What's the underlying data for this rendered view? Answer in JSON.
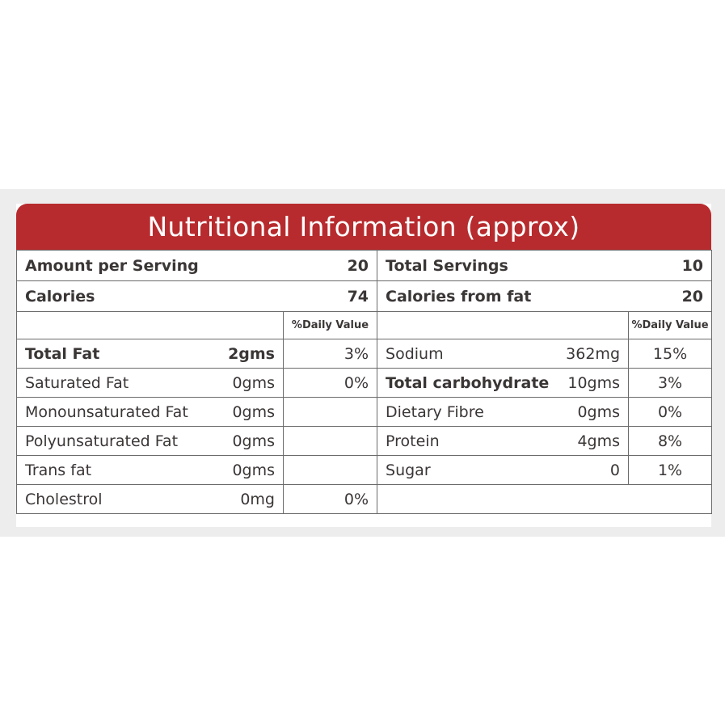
{
  "title": "Nutritional Information (approx)",
  "summary": {
    "amount_per_serving_label": "Amount per Serving",
    "amount_per_serving_value": "20",
    "calories_label": "Calories",
    "calories_value": "74",
    "total_servings_label": "Total Servings",
    "total_servings_value": "10",
    "calories_from_fat_label": "Calories from fat",
    "calories_from_fat_value": "20"
  },
  "daily_value_header_left": "%Daily Value",
  "daily_value_header_right": "%Daily Value",
  "left_rows": [
    {
      "name": "Total Fat",
      "amount": "2gms",
      "dv": "3%",
      "bold": true
    },
    {
      "name": "Saturated Fat",
      "amount": "0gms",
      "dv": "0%"
    },
    {
      "name": "Monounsaturated Fat",
      "amount": "0gms",
      "dv": ""
    },
    {
      "name": "Polyunsaturated Fat",
      "amount": "0gms",
      "dv": ""
    },
    {
      "name": "Trans fat",
      "amount": "0gms",
      "dv": ""
    },
    {
      "name": "Cholestrol",
      "amount": "0mg",
      "dv": "0%"
    }
  ],
  "right_rows": [
    {
      "name": "Sodium",
      "amount": "362mg",
      "dv": "15%"
    },
    {
      "name": "Total carbohydrate",
      "amount": "10gms",
      "dv": "3%",
      "bold": true
    },
    {
      "name": "Dietary Fibre",
      "amount": "0gms",
      "dv": "0%"
    },
    {
      "name": "Protein",
      "amount": "4gms",
      "dv": "8%"
    },
    {
      "name": "Sugar",
      "amount": "0",
      "dv": "1%"
    },
    {
      "name": "",
      "amount": "",
      "dv": ""
    }
  ],
  "colors": {
    "header_bg": "#b72b2e",
    "header_text": "#ffffff",
    "text": "#3b3636",
    "border": "#6b6b6b"
  }
}
